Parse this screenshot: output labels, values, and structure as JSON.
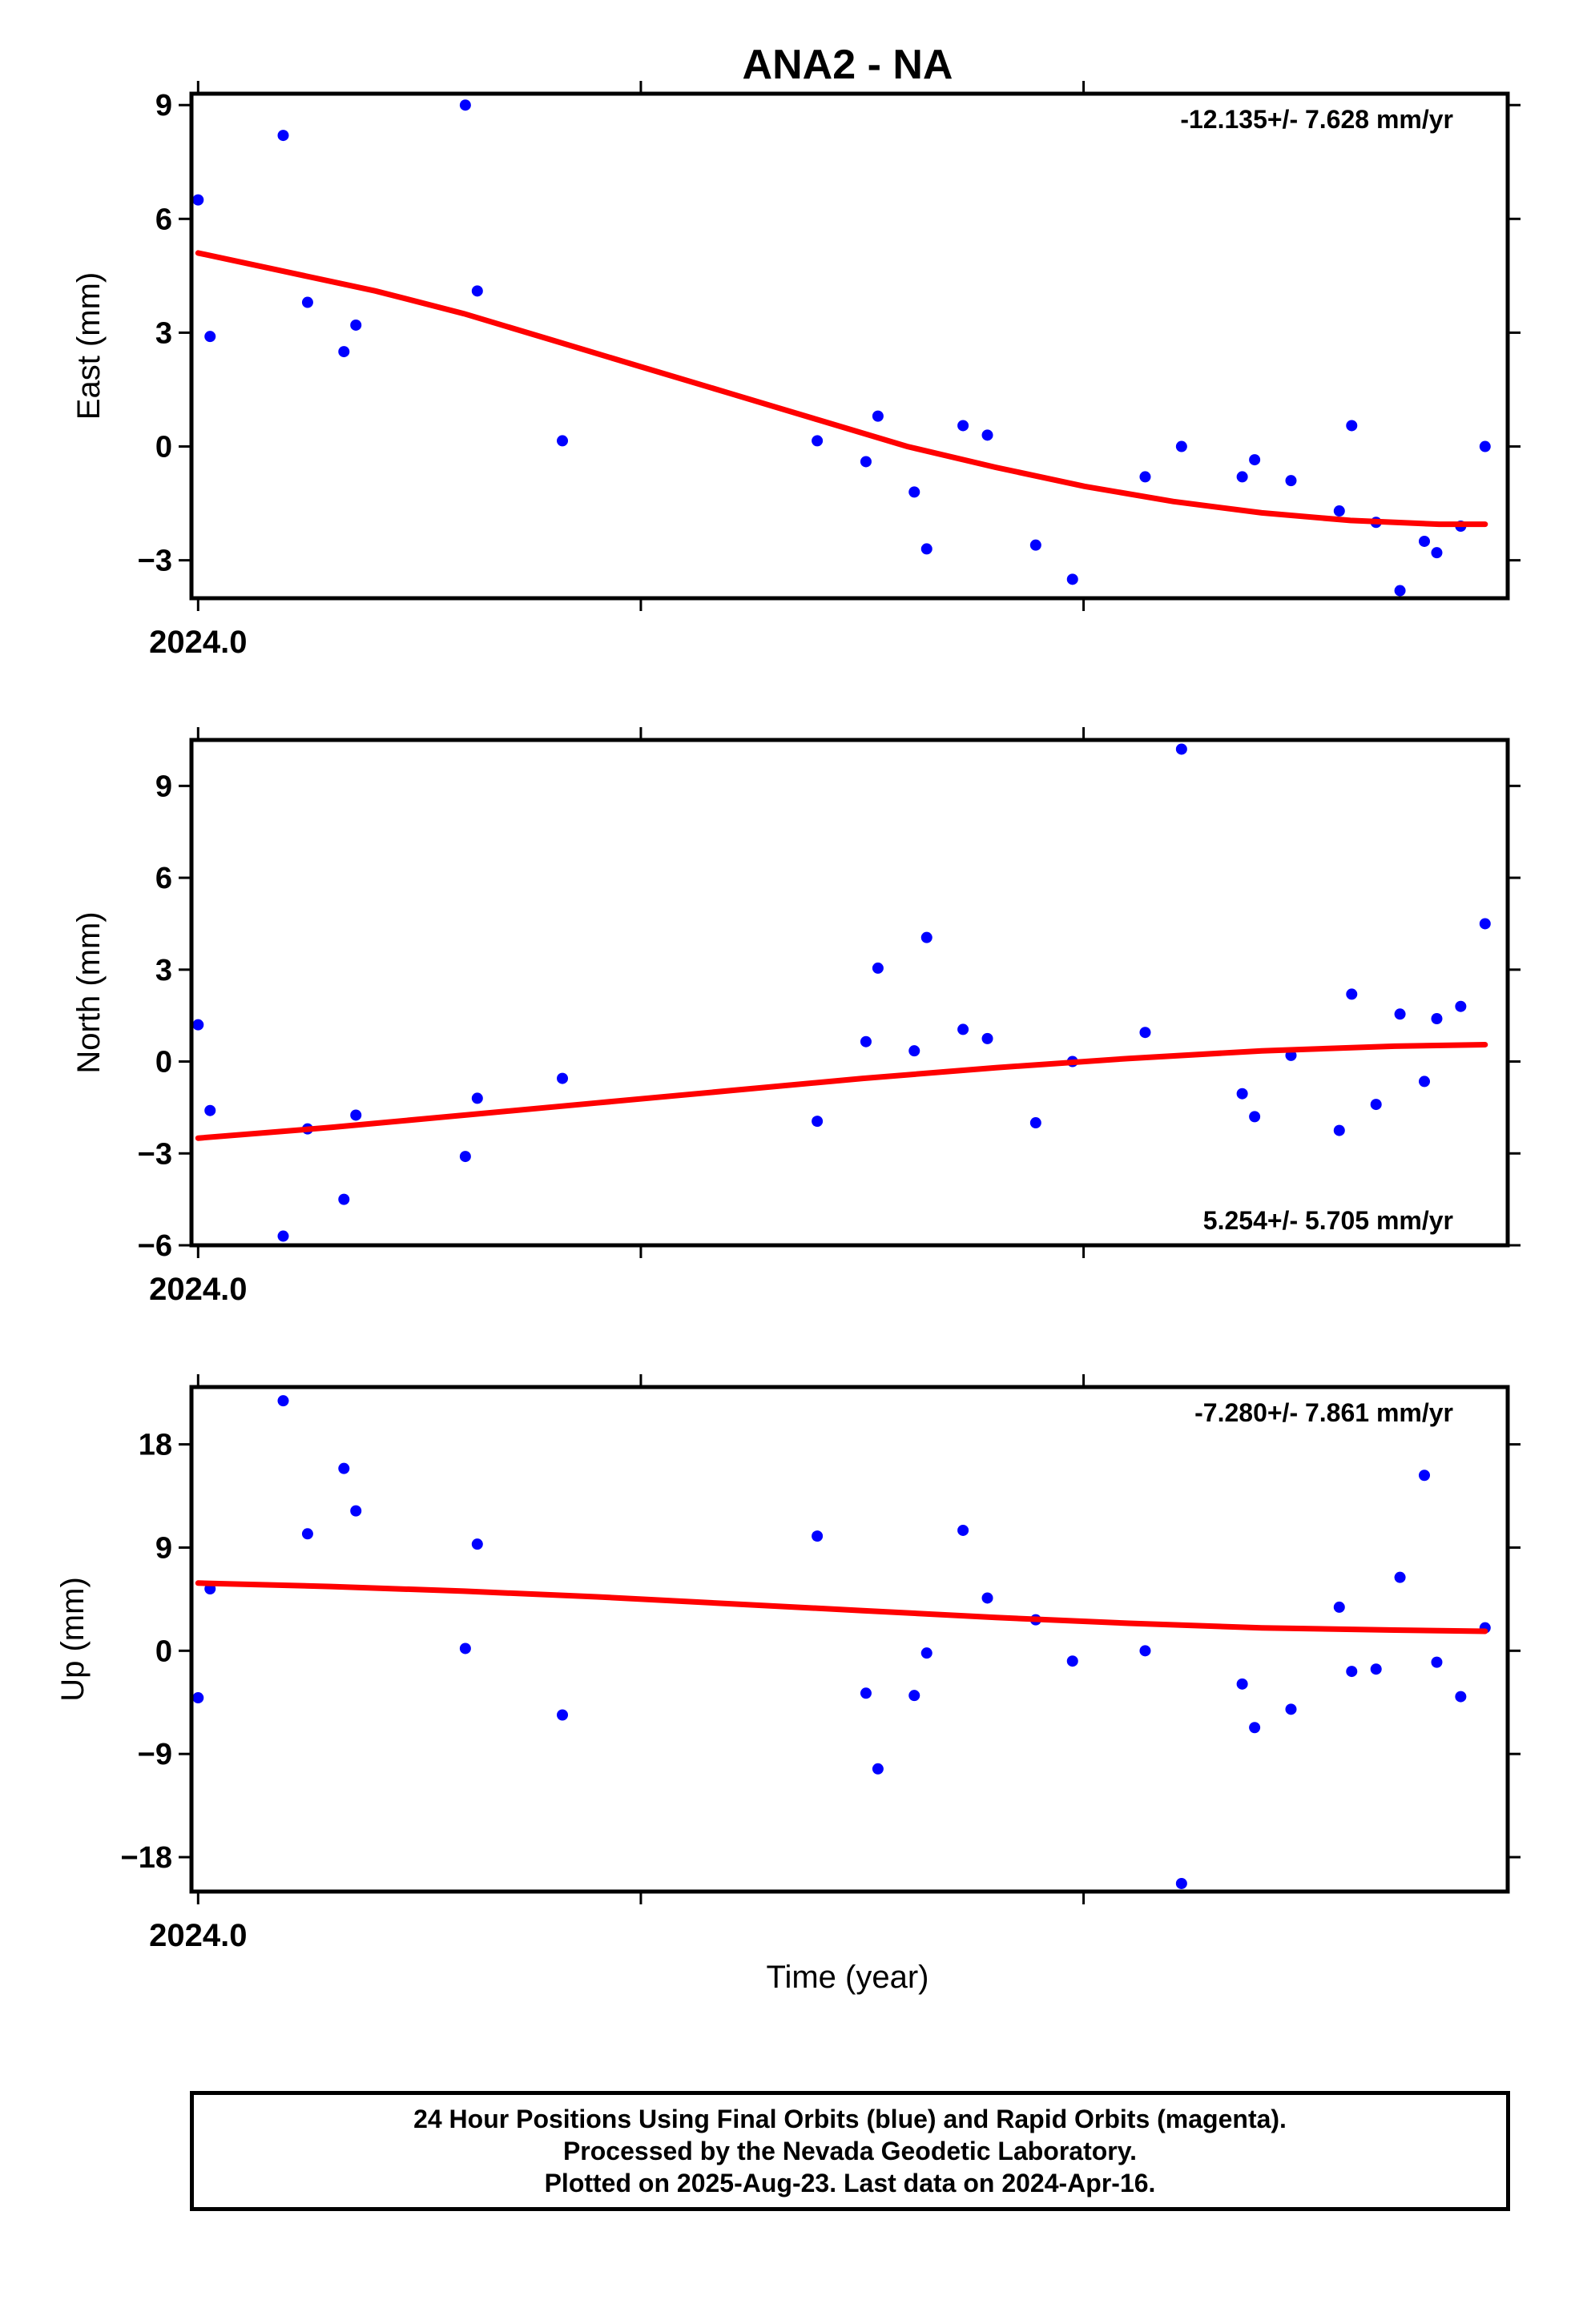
{
  "chart_data": [
    {
      "type": "scatter",
      "title": "ANA2 - NA",
      "ylabel": "East (mm)",
      "xlabel": "",
      "x_tick_labels": [
        "2024.0"
      ],
      "xlim": [
        2023.9985,
        2024.2955
      ],
      "ylim": [
        -4.0,
        9.3
      ],
      "y_ticks": [
        -3,
        0,
        3,
        6,
        9
      ],
      "y_tick_labels": [
        "−3",
        "0",
        "3",
        "6",
        "9"
      ],
      "rate_text": "-12.135+/- 7.628 mm/yr",
      "rate_position": "top-right",
      "series": [
        {
          "name": "Final Orbits",
          "color": "#0000ff",
          "points": [
            [
              2024.0,
              6.5
            ],
            [
              2024.0027,
              2.9
            ],
            [
              2024.0192,
              8.2
            ],
            [
              2024.0247,
              3.8
            ],
            [
              2024.0329,
              2.5
            ],
            [
              2024.0356,
              3.2
            ],
            [
              2024.0603,
              9.0
            ],
            [
              2024.063,
              4.1
            ],
            [
              2024.0822,
              0.15
            ],
            [
              2024.1397,
              0.15
            ],
            [
              2024.1507,
              -0.4
            ],
            [
              2024.1534,
              0.8
            ],
            [
              2024.1616,
              -1.2
            ],
            [
              2024.1644,
              -2.7
            ],
            [
              2024.1726,
              0.55
            ],
            [
              2024.1781,
              0.3
            ],
            [
              2024.189,
              -2.6
            ],
            [
              2024.1973,
              -3.5
            ],
            [
              2024.2137,
              -0.8
            ],
            [
              2024.2219,
              0.0
            ],
            [
              2024.2356,
              -0.8
            ],
            [
              2024.2384,
              -0.35
            ],
            [
              2024.2466,
              -0.9
            ],
            [
              2024.2575,
              -1.7
            ],
            [
              2024.2603,
              0.55
            ],
            [
              2024.2658,
              -2.0
            ],
            [
              2024.2712,
              -3.8
            ],
            [
              2024.2767,
              -2.5
            ],
            [
              2024.2795,
              -2.8
            ],
            [
              2024.2849,
              -2.1
            ],
            [
              2024.2904,
              0.0
            ]
          ]
        }
      ],
      "trend": {
        "color": "#ff0000",
        "points": [
          [
            2024.0,
            5.1
          ],
          [
            2024.02,
            4.6
          ],
          [
            2024.04,
            4.1
          ],
          [
            2024.06,
            3.5
          ],
          [
            2024.08,
            2.8
          ],
          [
            2024.1,
            2.1
          ],
          [
            2024.12,
            1.4
          ],
          [
            2024.14,
            0.7
          ],
          [
            2024.16,
            0.0
          ],
          [
            2024.18,
            -0.55
          ],
          [
            2024.2,
            -1.05
          ],
          [
            2024.22,
            -1.45
          ],
          [
            2024.24,
            -1.75
          ],
          [
            2024.26,
            -1.95
          ],
          [
            2024.28,
            -2.05
          ],
          [
            2024.2904,
            -2.05
          ]
        ]
      }
    },
    {
      "type": "scatter",
      "title": "",
      "ylabel": "North (mm)",
      "xlabel": "",
      "x_tick_labels": [
        "2024.0"
      ],
      "xlim": [
        2023.9985,
        2024.2955
      ],
      "ylim": [
        -6.0,
        10.5
      ],
      "y_ticks": [
        -6,
        -3,
        0,
        3,
        6,
        9
      ],
      "y_tick_labels": [
        "−6",
        "−3",
        "0",
        "3",
        "6",
        "9"
      ],
      "rate_text": "5.254+/- 5.705 mm/yr",
      "rate_position": "bottom-right",
      "series": [
        {
          "name": "Final Orbits",
          "color": "#0000ff",
          "points": [
            [
              2024.0,
              1.2
            ],
            [
              2024.0027,
              -1.6
            ],
            [
              2024.0192,
              -5.7
            ],
            [
              2024.0247,
              -2.2
            ],
            [
              2024.0329,
              -4.5
            ],
            [
              2024.0356,
              -1.75
            ],
            [
              2024.0603,
              -3.1
            ],
            [
              2024.063,
              -1.2
            ],
            [
              2024.0822,
              -0.55
            ],
            [
              2024.1397,
              -1.95
            ],
            [
              2024.1507,
              0.65
            ],
            [
              2024.1534,
              3.05
            ],
            [
              2024.1616,
              0.35
            ],
            [
              2024.1644,
              4.05
            ],
            [
              2024.1726,
              1.05
            ],
            [
              2024.1781,
              0.75
            ],
            [
              2024.189,
              -2.0
            ],
            [
              2024.1973,
              0.0
            ],
            [
              2024.2137,
              0.95
            ],
            [
              2024.2219,
              10.2
            ],
            [
              2024.2356,
              -1.05
            ],
            [
              2024.2384,
              -1.8
            ],
            [
              2024.2466,
              0.2
            ],
            [
              2024.2575,
              -2.25
            ],
            [
              2024.2603,
              2.2
            ],
            [
              2024.2658,
              -1.4
            ],
            [
              2024.2712,
              1.55
            ],
            [
              2024.2767,
              -0.65
            ],
            [
              2024.2795,
              1.4
            ],
            [
              2024.2849,
              1.8
            ],
            [
              2024.2904,
              4.5
            ]
          ]
        }
      ],
      "trend": {
        "color": "#ff0000",
        "points": [
          [
            2024.0,
            -2.5
          ],
          [
            2024.03,
            -2.15
          ],
          [
            2024.06,
            -1.75
          ],
          [
            2024.09,
            -1.35
          ],
          [
            2024.12,
            -0.95
          ],
          [
            2024.15,
            -0.55
          ],
          [
            2024.18,
            -0.2
          ],
          [
            2024.21,
            0.1
          ],
          [
            2024.24,
            0.35
          ],
          [
            2024.27,
            0.5
          ],
          [
            2024.2904,
            0.55
          ]
        ]
      }
    },
    {
      "type": "scatter",
      "title": "",
      "ylabel": "Up (mm)",
      "xlabel": "Time (year)",
      "x_tick_labels": [
        "2024.0"
      ],
      "xlim": [
        2023.9985,
        2024.2955
      ],
      "ylim": [
        -21.0,
        23.0
      ],
      "y_ticks": [
        -18,
        -9,
        0,
        9,
        18
      ],
      "y_tick_labels": [
        "−18",
        "−9",
        "0",
        "9",
        "18"
      ],
      "rate_text": "-7.280+/- 7.861 mm/yr",
      "rate_position": "top-right",
      "series": [
        {
          "name": "Final Orbits",
          "color": "#0000ff",
          "points": [
            [
              2024.0,
              -4.1
            ],
            [
              2024.0027,
              5.4
            ],
            [
              2024.0192,
              21.8
            ],
            [
              2024.0247,
              10.2
            ],
            [
              2024.0329,
              15.9
            ],
            [
              2024.0356,
              12.2
            ],
            [
              2024.0603,
              0.2
            ],
            [
              2024.063,
              9.3
            ],
            [
              2024.0822,
              -5.6
            ],
            [
              2024.1397,
              10.0
            ],
            [
              2024.1507,
              -3.7
            ],
            [
              2024.1534,
              -10.3
            ],
            [
              2024.1616,
              -3.9
            ],
            [
              2024.1644,
              -0.2
            ],
            [
              2024.1726,
              10.5
            ],
            [
              2024.1781,
              4.6
            ],
            [
              2024.189,
              2.7
            ],
            [
              2024.1973,
              -0.9
            ],
            [
              2024.2137,
              0.0
            ],
            [
              2024.2219,
              -20.3
            ],
            [
              2024.2356,
              -2.9
            ],
            [
              2024.2384,
              -6.7
            ],
            [
              2024.2466,
              -5.1
            ],
            [
              2024.2575,
              3.8
            ],
            [
              2024.2603,
              -1.8
            ],
            [
              2024.2658,
              -1.6
            ],
            [
              2024.2712,
              6.4
            ],
            [
              2024.2767,
              15.3
            ],
            [
              2024.2795,
              -1.0
            ],
            [
              2024.2849,
              -4.0
            ],
            [
              2024.2904,
              2.0
            ]
          ]
        }
      ],
      "trend": {
        "color": "#ff0000",
        "points": [
          [
            2024.0,
            5.9
          ],
          [
            2024.03,
            5.6
          ],
          [
            2024.06,
            5.2
          ],
          [
            2024.09,
            4.7
          ],
          [
            2024.12,
            4.1
          ],
          [
            2024.15,
            3.5
          ],
          [
            2024.18,
            2.9
          ],
          [
            2024.21,
            2.4
          ],
          [
            2024.24,
            2.0
          ],
          [
            2024.27,
            1.8
          ],
          [
            2024.2904,
            1.7
          ]
        ]
      }
    }
  ],
  "footer": {
    "line1": "24 Hour Positions Using Final Orbits (blue) and Rapid Orbits (magenta).",
    "line2": "Processed by the Nevada Geodetic Laboratory.",
    "line3": "Plotted on 2025-Aug-23. Last data on 2024-Apr-16."
  }
}
